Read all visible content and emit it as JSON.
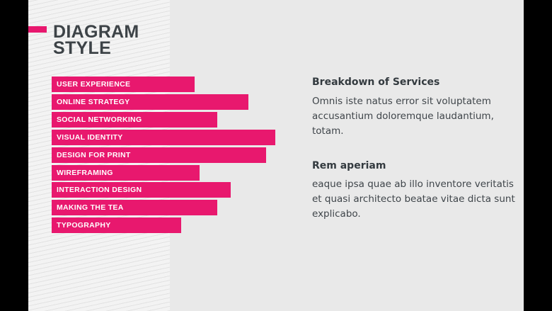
{
  "slide": {
    "title": "DIAGRAM\nSTYLE",
    "bars": [
      {
        "label": "USER EXPERIENCE",
        "value": 0.64
      },
      {
        "label": "ONLINE STRATEGY",
        "value": 0.88
      },
      {
        "label": "SOCIAL NETWORKING",
        "value": 0.74
      },
      {
        "label": "VISUAL IDENTITY",
        "value": 1.0
      },
      {
        "label": "DESIGN FOR PRINT",
        "value": 0.96
      },
      {
        "label": "WIREFRAMING",
        "value": 0.66
      },
      {
        "label": "INTERACTION DESIGN",
        "value": 0.8
      },
      {
        "label": "MAKING THE TEA",
        "value": 0.74
      },
      {
        "label": "TYPOGRAPHY",
        "value": 0.58
      }
    ],
    "sections": [
      {
        "title": "Breakdown of Services",
        "body": "Omnis iste natus error sit voluptatem accusantium doloremque laudantium, totam."
      },
      {
        "title": "Rem aperiam",
        "body": "eaque ipsa quae ab illo inventore veritatis et quasi architecto beatae vitae dicta sunt explicabo."
      }
    ]
  },
  "colors": {
    "accent": "#e8186e",
    "heading": "#3d4347",
    "background": "#e9e9e9",
    "panel": "#f3f3f3"
  }
}
